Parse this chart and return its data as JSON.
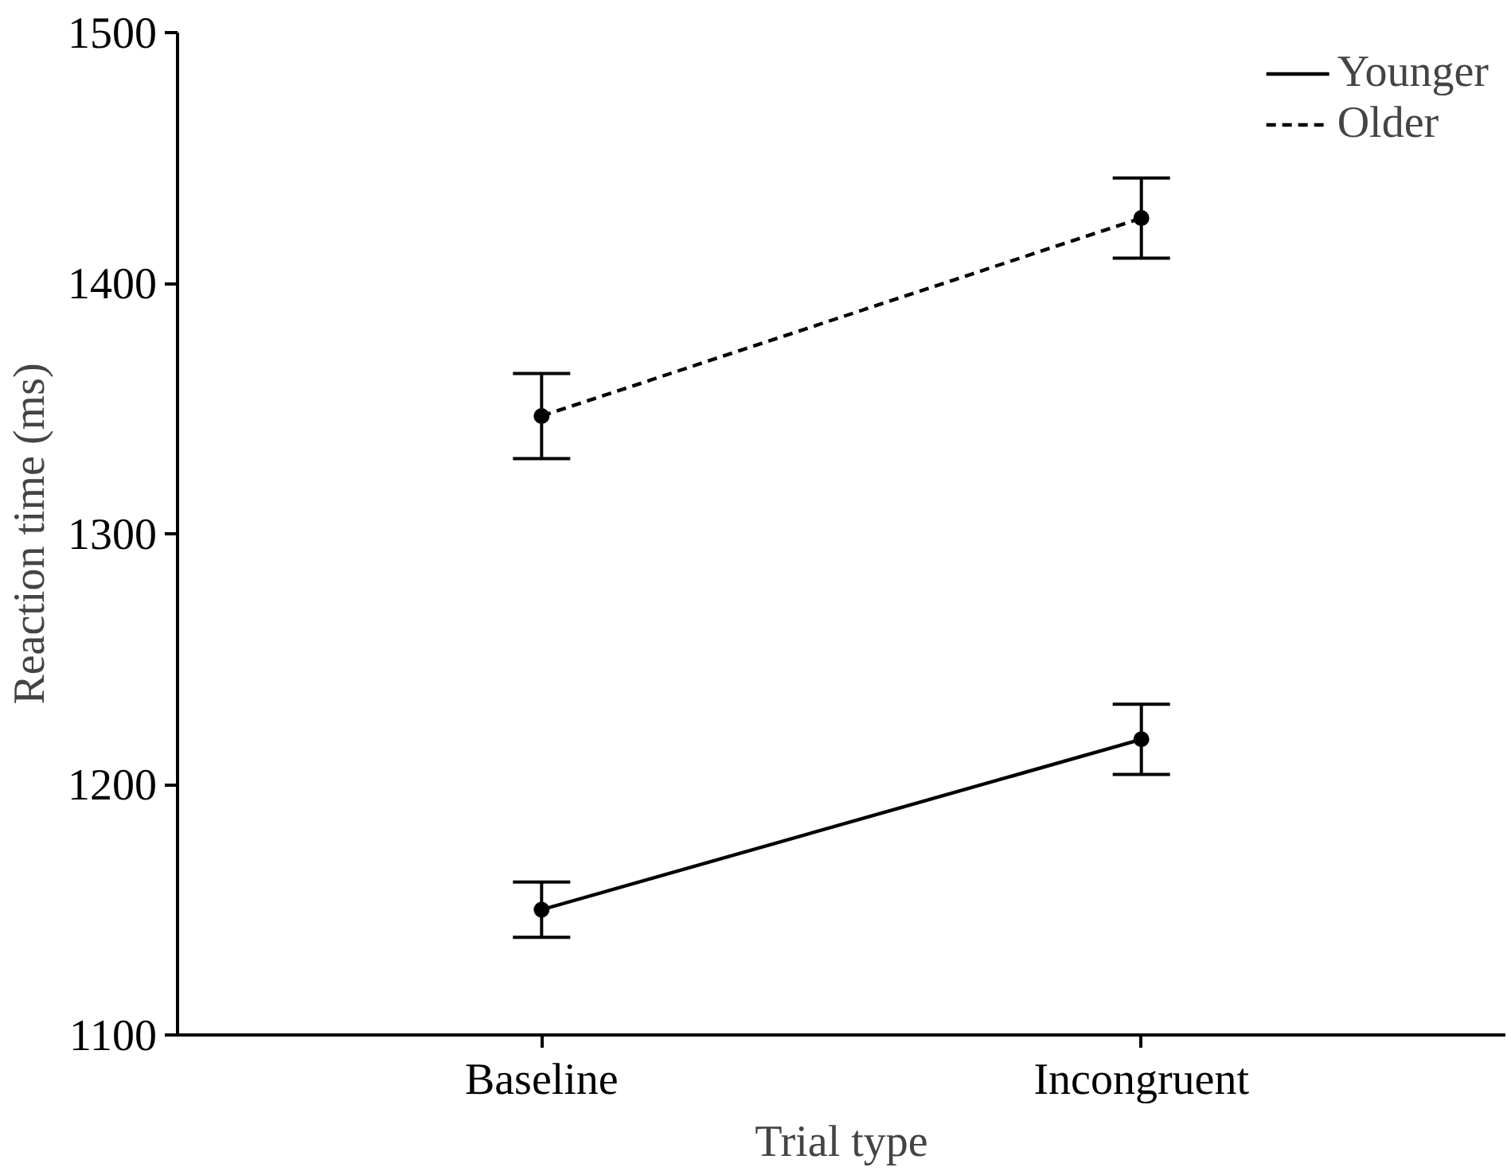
{
  "chart_data": {
    "type": "line",
    "xlabel": "Trial type",
    "ylabel": "Reaction time (ms)",
    "categories": [
      "Baseline",
      "Incongruent"
    ],
    "series": [
      {
        "name": "Younger",
        "color": "#000000",
        "line_style": "solid",
        "values": [
          1150,
          1218
        ],
        "errors": [
          11,
          14
        ]
      },
      {
        "name": "Older",
        "color": "#000000",
        "line_style": "dashed",
        "values": [
          1347,
          1426
        ],
        "errors": [
          17,
          16
        ]
      }
    ],
    "ylim": [
      1100,
      1500
    ],
    "yticks": [
      1100,
      1200,
      1300,
      1400,
      1500
    ],
    "grid": false,
    "legend": "top right",
    "marker": "circle"
  }
}
